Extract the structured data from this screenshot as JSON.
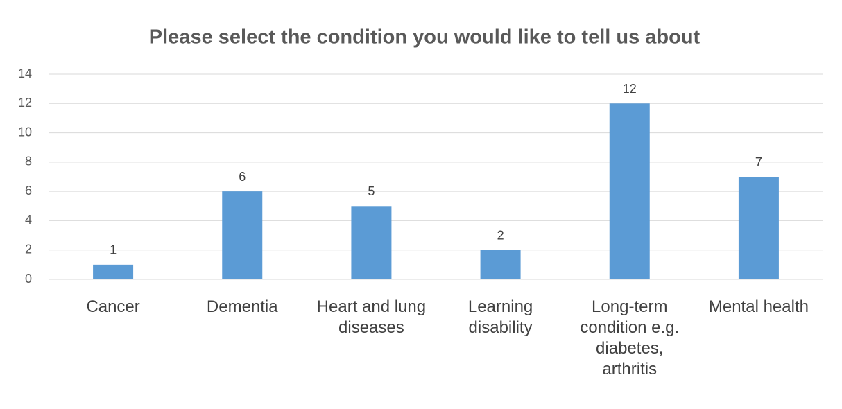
{
  "chart_data": {
    "type": "bar",
    "title": "Please select the condition you would like to tell us about",
    "categories": [
      "Cancer",
      "Dementia",
      "Heart and lung diseases",
      "Learning disability",
      "Long-term condition e.g. diabetes, arthritis",
      "Mental health"
    ],
    "values": [
      1,
      6,
      5,
      2,
      12,
      7
    ],
    "color": "#5b9bd5",
    "ylim": [
      0,
      14
    ],
    "yticks": [
      0,
      2,
      4,
      6,
      8,
      10,
      12,
      14
    ],
    "grid": true
  }
}
